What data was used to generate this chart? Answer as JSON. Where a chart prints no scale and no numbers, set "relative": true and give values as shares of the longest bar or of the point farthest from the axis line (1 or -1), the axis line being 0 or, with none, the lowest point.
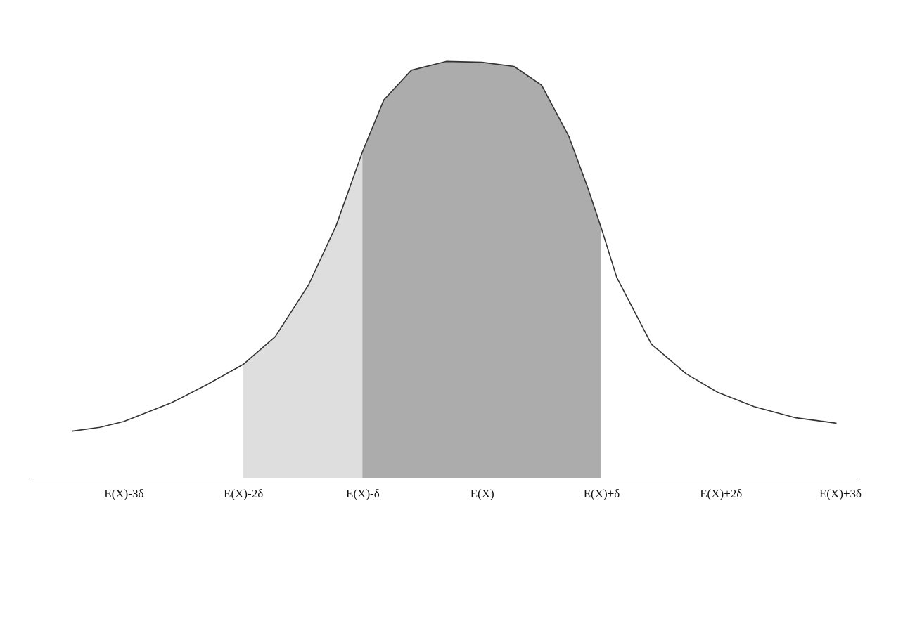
{
  "chart_data": {
    "type": "line",
    "relative": true,
    "grid": false,
    "xlim": [
      -3.8,
      3.15
    ],
    "xticks": [
      {
        "value": -3,
        "label": "E(X)-3δ"
      },
      {
        "value": -2,
        "label": "E(X)-2δ"
      },
      {
        "value": -1,
        "label": "E(X)-δ"
      },
      {
        "value": 0,
        "label": "E(X)"
      },
      {
        "value": 1,
        "label": "E(X)+δ"
      },
      {
        "value": 2,
        "label": "E(X)+2δ"
      },
      {
        "value": 3,
        "label": "E(X)+3δ"
      }
    ],
    "series": [
      {
        "type": "area",
        "color": "#c8c8c8",
        "x": [
          -2.0,
          -1.73,
          -1.45,
          -1.22,
          -1.0,
          -0.82,
          -0.59,
          -0.3,
          0,
          0.27,
          0.5,
          0.73,
          0.89,
          1.0
        ],
        "values": [
          0.272,
          0.339,
          0.464,
          0.606,
          0.783,
          0.908,
          0.979,
          1.0,
          0.998,
          0.988,
          0.943,
          0.819,
          0.694,
          0.6
        ]
      },
      {
        "type": "area",
        "color": "#8a8a8a",
        "x": [
          -1.0,
          -0.82,
          -0.59,
          -0.3,
          0,
          0.27,
          0.5,
          0.73,
          0.89,
          1.0
        ],
        "values": [
          0.783,
          0.908,
          0.979,
          1.0,
          0.998,
          0.988,
          0.943,
          0.819,
          0.694,
          0.6
        ]
      },
      {
        "color": "#333333",
        "x": [
          -3.43,
          -3.2,
          -3.0,
          -2.6,
          -2.3,
          -2.0,
          -1.73,
          -1.45,
          -1.22,
          -1.0,
          -0.82,
          -0.59,
          -0.3,
          0,
          0.27,
          0.5,
          0.73,
          0.89,
          1.0,
          1.13,
          1.42,
          1.71,
          1.97,
          2.28,
          2.63,
          2.97
        ],
        "values": [
          0.112,
          0.121,
          0.135,
          0.18,
          0.224,
          0.272,
          0.339,
          0.464,
          0.606,
          0.783,
          0.908,
          0.979,
          1.0,
          0.998,
          0.988,
          0.943,
          0.819,
          0.694,
          0.6,
          0.481,
          0.321,
          0.25,
          0.206,
          0.171,
          0.144,
          0.131
        ]
      }
    ]
  }
}
